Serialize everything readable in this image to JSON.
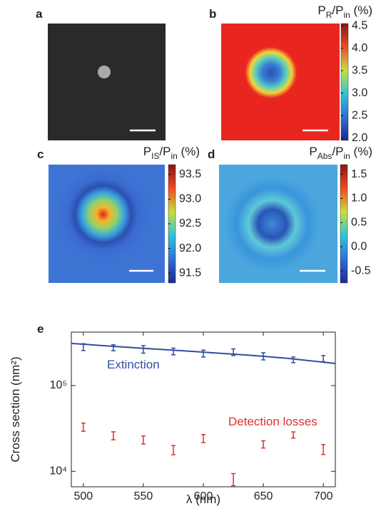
{
  "chart_data": [
    {
      "type": "image",
      "label": "a"
    },
    {
      "type": "heatmap",
      "label": "b",
      "colorbar_title": [
        "P",
        "R",
        "/P",
        "in",
        " (%)"
      ],
      "clim": [
        1.95,
        4.55
      ],
      "cticks": [
        {
          "value": 2,
          "label": "2.0"
        },
        {
          "value": 2.5,
          "label": "2.5"
        },
        {
          "value": 3,
          "label": "3.0"
        },
        {
          "value": 3.5,
          "label": "3.5"
        },
        {
          "value": 4,
          "label": "4.0"
        },
        {
          "value": 4.5,
          "label": "4.5"
        }
      ]
    },
    {
      "type": "heatmap",
      "label": "c",
      "colorbar_title": [
        "P",
        "IS",
        "/P",
        "in",
        " (%)"
      ],
      "clim": [
        91.3,
        93.7
      ],
      "cticks": [
        91.5,
        {
          "value": 92,
          "label": "92.0"
        },
        92.5,
        {
          "value": 93,
          "label": "93.0"
        },
        93.5
      ]
    },
    {
      "type": "heatmap",
      "label": "d",
      "colorbar_title": [
        "P",
        "Abs",
        "/P",
        "in",
        " (%)"
      ],
      "clim": [
        -0.75,
        1.7
      ],
      "cticks": [
        -0.5,
        {
          "value": 0,
          "label": "0.0"
        },
        0.5,
        {
          "value": 1,
          "label": "1.0"
        },
        1.5
      ]
    },
    {
      "type": "scatter",
      "label": "e",
      "xlabel": "λ (nm)",
      "ylabel": "Cross section (nm²)",
      "yscale": "log",
      "x": [
        500,
        525,
        550,
        575,
        600,
        625,
        650,
        675,
        700
      ],
      "xlim": [
        490,
        710
      ],
      "xticks": [
        500,
        550,
        600,
        650,
        700
      ],
      "ylim": [
        6600,
        420000
      ],
      "yticks": [
        {
          "value": 10000,
          "label": "10⁴"
        },
        {
          "value": 100000,
          "label": "10⁵"
        }
      ],
      "series": [
        {
          "name": "Extinction",
          "color": "#2f4f9f",
          "values": [
            282000,
            277000,
            266000,
            251000,
            237000,
            246000,
            220000,
            200000,
            207000
          ],
          "errors": [
            26000,
            22000,
            27000,
            22000,
            22000,
            22000,
            21000,
            15000,
            17000
          ]
        },
        {
          "name": "Detection losses",
          "color": "#e0302f",
          "values": [
            32900,
            26100,
            23300,
            17800,
            24200,
            8100,
            20700,
            26600,
            18100
          ],
          "errors": [
            3600,
            2800,
            2500,
            2200,
            2600,
            1300,
            2000,
            2200,
            2400
          ]
        }
      ],
      "fit": {
        "x": [
          490,
          520,
          550,
          580,
          610,
          640,
          670,
          710
        ],
        "values": [
          310000,
          290000,
          272000,
          256000,
          240000,
          225000,
          208000,
          181000
        ],
        "color": "#2f4f9f"
      }
    }
  ]
}
